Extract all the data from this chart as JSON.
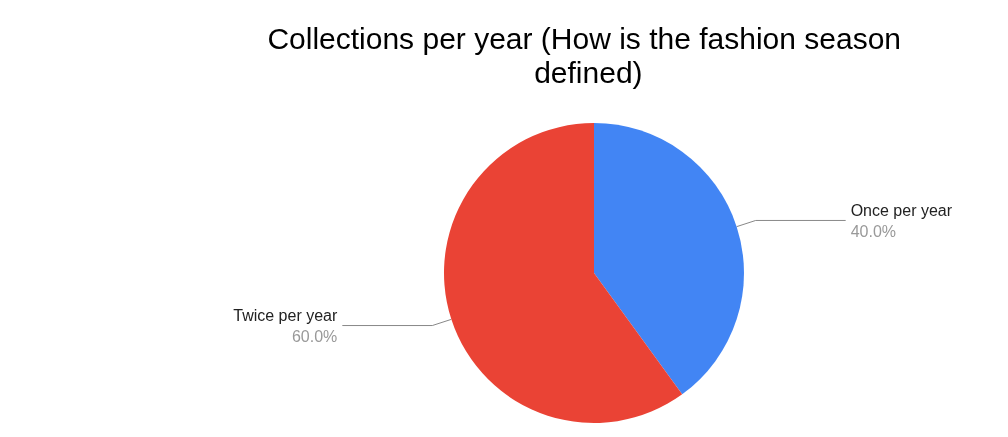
{
  "chart_data": {
    "type": "pie",
    "title": "Collections per year (How is the fashion season defined)",
    "categories": [
      "Once per year",
      "Twice per year"
    ],
    "values": [
      40,
      60
    ],
    "colors": [
      "#4285f4",
      "#ea4335"
    ],
    "value_labels": [
      "40.0%",
      "60.0%"
    ],
    "legend": false
  }
}
